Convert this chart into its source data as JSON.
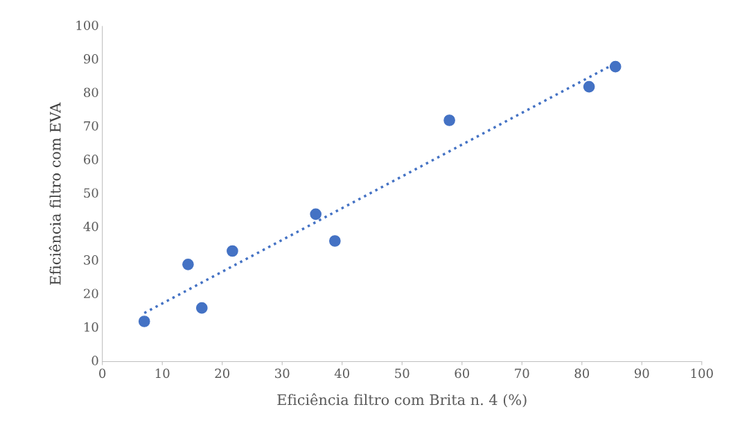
{
  "chart_data": {
    "type": "scatter",
    "xlabel": "Eficiência filtro com Brita n. 4 (%)",
    "ylabel": "Eficiência filtro com EVA",
    "xlim": [
      0,
      100
    ],
    "xticks": [
      0,
      10,
      20,
      30,
      40,
      50,
      60,
      70,
      80,
      90,
      100
    ],
    "ylim": [
      0,
      100
    ],
    "yticks": [
      0,
      10,
      20,
      30,
      40,
      50,
      60,
      70,
      80,
      90,
      100
    ],
    "grid": false,
    "legend": false,
    "series": [
      {
        "color": "#4472c4",
        "marker": "circle",
        "x": [
          7,
          14.3,
          16.6,
          21.7,
          35.6,
          38.8,
          57.9,
          81.2,
          85.6
        ],
        "values": [
          12,
          29,
          16,
          33,
          44,
          36,
          72,
          82,
          88
        ]
      },
      {
        "type": "line",
        "color": "#4472c4",
        "marker": "none",
        "line_style": "dotted",
        "x": [
          7,
          85.6
        ],
        "values": [
          14.5,
          89
        ]
      }
    ]
  }
}
